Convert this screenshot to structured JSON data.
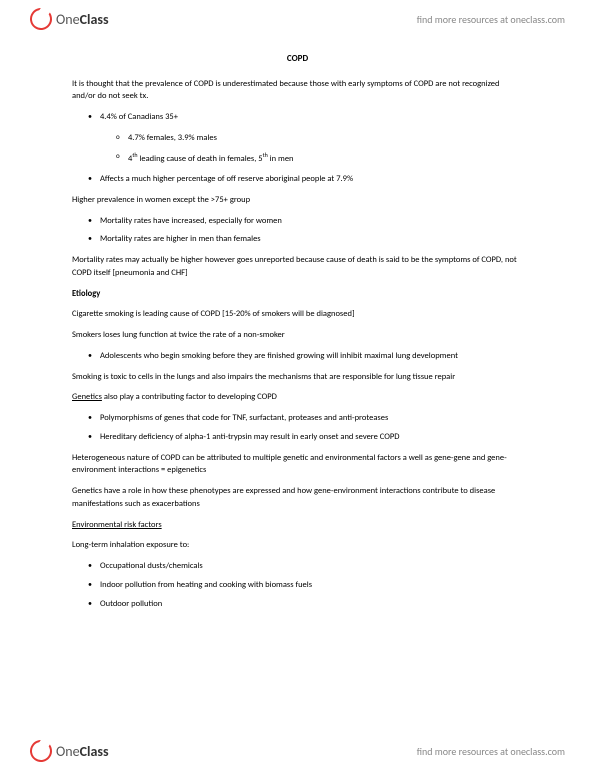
{
  "brand": {
    "name_part1": "One",
    "name_part2": "Class",
    "tagline": "find more resources at oneclass.com"
  },
  "doc": {
    "title": "COPD",
    "intro": "It is thought that the prevalence of COPD is underestimated because those with early symptoms of COPD are not recognized and/or do not seek tx.",
    "b1": "4.4% of Canadians 35+",
    "b1a": "4.7% females, 3.9% males",
    "b1b_pre": "4",
    "b1b_sup1": "th",
    "b1b_mid": " leading cause of death in females, 5",
    "b1b_sup2": "th",
    "b1b_post": " in men",
    "b2": "Affects a much higher percentage of off reserve aboriginal people at 7.9%",
    "p2": "Higher prevalence in women except the >75+ group",
    "b3": "Mortality rates have increased, especially for women",
    "b4": "Mortality rates are higher in men than females",
    "p3": "Mortality rates may actually be higher however goes unreported because cause of death is said to be the symptoms of COPD, not COPD itself [pneumonia and CHF]",
    "h_etiology": "Etiology",
    "p4": "Cigarette smoking is leading cause of COPD [15-20% of smokers will be diagnosed]",
    "p5": "Smokers loses lung function at twice the rate of a non-smoker",
    "b5": "Adolescents who begin smoking before they are finished growing will inhibit maximal lung development",
    "p6": "Smoking is toxic to cells in the lungs and also impairs the mechanisms that are responsible for lung tissue repair",
    "genetics_label": "Genetics",
    "p7_rest": " also play a contributing factor to developing COPD",
    "b6": "Polymorphisms of genes that code for TNF, surfactant, proteases and anti-proteases",
    "b7": "Hereditary deficiency of alpha-1 anti-trypsin may result in early onset and severe COPD",
    "p8": "Heterogeneous nature of COPD can be attributed to multiple genetic and environmental factors a well as gene-gene and gene-environment interactions = epigenetics",
    "p9": "Genetics have a role in how these phenotypes are expressed and how gene-environment interactions contribute to disease manifestations such as exacerbations",
    "h_env": "Environmental risk factors",
    "p10": "Long-term inhalation exposure to:",
    "b8": "Occupational dusts/chemicals",
    "b9": "Indoor pollution from heating and cooking with biomass fuels",
    "b10": "Outdoor pollution"
  },
  "colors": {
    "text": "#000000",
    "link": "#888888",
    "brand_red": "#e53935",
    "background": "#ffffff"
  },
  "typography": {
    "body_fontsize": 8.5,
    "title_fontsize": 9,
    "link_fontsize": 10,
    "logo_fontsize": 14
  }
}
